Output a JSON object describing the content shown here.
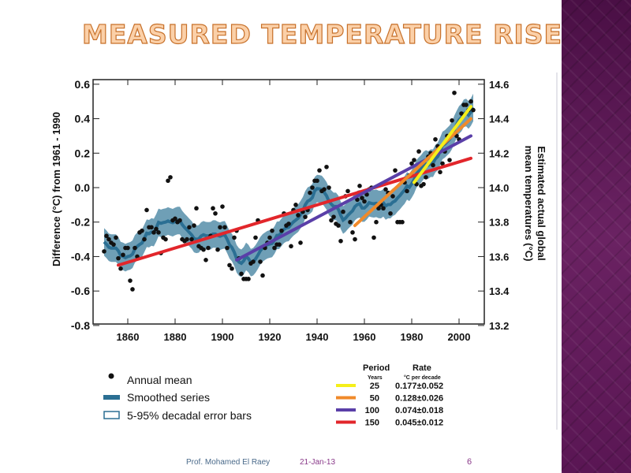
{
  "slide": {
    "title": "MEASURED TEMPERATURE RISE",
    "footer_author": "Prof. Mohamed El Raey",
    "footer_date": "21-Jan-13",
    "page_number": "6"
  },
  "colors": {
    "accent": "#e07b2a",
    "purple_panel": "#5a1654",
    "band": "#5f95ae",
    "smooth": "#2b6f93",
    "yellow": "#f5ef1a",
    "orange": "#f08a2a",
    "purple": "#5a3fa8",
    "red": "#e2262b"
  },
  "chart_data": {
    "type": "scatter",
    "title": "",
    "xlabel": "",
    "ylabel": "Difference (°C) from 1961 - 1990",
    "ylabel_right": [
      "Estimated actual global",
      "mean temperatures (°C)"
    ],
    "xlim": [
      1846,
      2011
    ],
    "ylim": [
      -0.8,
      0.65
    ],
    "x_ticks": [
      "1860",
      "1880",
      "1900",
      "1920",
      "1940",
      "1960",
      "1980",
      "2000"
    ],
    "y_ticks": [
      "0.6",
      "0.4",
      "0.2",
      "0.0",
      "-0.2",
      "-0.4",
      "-0.6",
      "-0.8"
    ],
    "y_right_ticks": [
      "14.6",
      "14.4",
      "14.2",
      "14.0",
      "13.8",
      "13.6",
      "13.4",
      "13.2"
    ],
    "annual_start_year": 1850,
    "annual_mean": [
      -0.37,
      -0.28,
      -0.3,
      -0.32,
      -0.33,
      -0.29,
      -0.41,
      -0.47,
      -0.39,
      -0.35,
      -0.35,
      -0.54,
      -0.59,
      -0.35,
      -0.4,
      -0.26,
      -0.25,
      -0.3,
      -0.13,
      -0.23,
      -0.23,
      -0.26,
      -0.24,
      -0.26,
      -0.38,
      -0.29,
      -0.3,
      0.04,
      0.06,
      -0.19,
      -0.18,
      -0.2,
      -0.19,
      -0.3,
      -0.31,
      -0.3,
      -0.23,
      -0.3,
      -0.22,
      -0.12,
      -0.34,
      -0.35,
      -0.36,
      -0.42,
      -0.35,
      -0.28,
      -0.12,
      -0.15,
      -0.36,
      -0.23,
      -0.11,
      -0.23,
      -0.35,
      -0.45,
      -0.47,
      -0.29,
      -0.25,
      -0.41,
      -0.5,
      -0.53,
      -0.53,
      -0.53,
      -0.44,
      -0.43,
      -0.29,
      -0.19,
      -0.43,
      -0.51,
      -0.35,
      -0.32,
      -0.29,
      -0.25,
      -0.35,
      -0.33,
      -0.33,
      -0.25,
      -0.15,
      -0.22,
      -0.21,
      -0.34,
      -0.13,
      -0.1,
      -0.16,
      -0.32,
      -0.14,
      -0.17,
      -0.13,
      -0.03,
      0.0,
      0.04,
      0.04,
      0.1,
      -0.02,
      -0.01,
      0.12,
      0.0,
      -0.19,
      -0.17,
      -0.21,
      -0.22,
      -0.31,
      -0.14,
      -0.05,
      -0.02,
      -0.2,
      -0.26,
      -0.3,
      -0.07,
      0.01,
      -0.06,
      -0.08,
      -0.04,
      -0.01,
      0.0,
      -0.29,
      -0.2,
      -0.12,
      -0.1,
      -0.12,
      -0.01,
      -0.03,
      -0.15,
      -0.05,
      0.1,
      -0.2,
      -0.2,
      -0.2,
      0.03,
      -0.02,
      0.07,
      0.14,
      0.16,
      0.02,
      0.21,
      0.01,
      0.02,
      0.06,
      0.18,
      0.2,
      0.13,
      0.28,
      0.24,
      0.09,
      0.14,
      0.21,
      0.3,
      0.16,
      0.39,
      0.55,
      0.3,
      0.28,
      0.43,
      0.48,
      0.48,
      0.45,
      0.5,
      0.45
    ],
    "smoothing_window_years": 11,
    "error_band_halfwidth": 0.08,
    "trends": [
      {
        "period": "25",
        "rate": "0.177±0.052",
        "start": 1981,
        "end": 2005,
        "y0": 0.03,
        "y1": 0.47,
        "color": "#f5ef1a"
      },
      {
        "period": "50",
        "rate": "0.128±0.026",
        "start": 1956,
        "end": 2005,
        "y0": -0.22,
        "y1": 0.4,
        "color": "#f08a2a"
      },
      {
        "period": "100",
        "rate": "0.074±0.018",
        "start": 1906,
        "end": 2005,
        "y0": -0.42,
        "y1": 0.3,
        "color": "#5a3fa8"
      },
      {
        "period": "150",
        "rate": "0.045±0.012",
        "start": 1856,
        "end": 2005,
        "y0": -0.45,
        "y1": 0.17,
        "color": "#e2262b"
      }
    ],
    "legend": {
      "annual": "Annual mean",
      "smoothed": "Smoothed series",
      "error": "5-95% decadal error bars",
      "period_header": "Period",
      "period_sub": "Years",
      "rate_header": "Rate",
      "rate_sub": "°C  per decade",
      "placement": "bottom"
    }
  }
}
